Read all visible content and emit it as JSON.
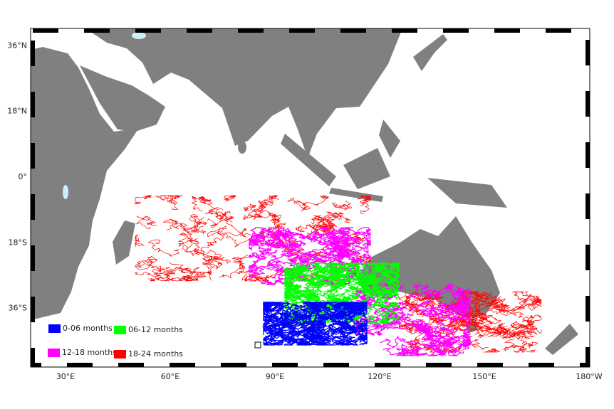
{
  "map": {
    "lat_ticks": [
      {
        "value": 36,
        "label": "36°N"
      },
      {
        "value": 18,
        "label": "18°N"
      },
      {
        "value": 0,
        "label": "0°"
      },
      {
        "value": -18,
        "label": "18°S"
      },
      {
        "value": -36,
        "label": "36°S"
      }
    ],
    "lon_ticks": [
      {
        "value": 30,
        "label": "30°E"
      },
      {
        "value": 60,
        "label": "60°E"
      },
      {
        "value": 90,
        "label": "90°E"
      },
      {
        "value": 120,
        "label": "120°E"
      },
      {
        "value": 150,
        "label": "150°E"
      },
      {
        "value": 180,
        "label": "180°W"
      }
    ],
    "legend": [
      {
        "label": "0-06 months",
        "color": "#0000ff"
      },
      {
        "label": "06-12 months",
        "color": "#00ff00"
      },
      {
        "label": "12-18 months",
        "color": "#ff00ff"
      },
      {
        "label": "18-24 months",
        "color": "#ff0000"
      }
    ]
  }
}
